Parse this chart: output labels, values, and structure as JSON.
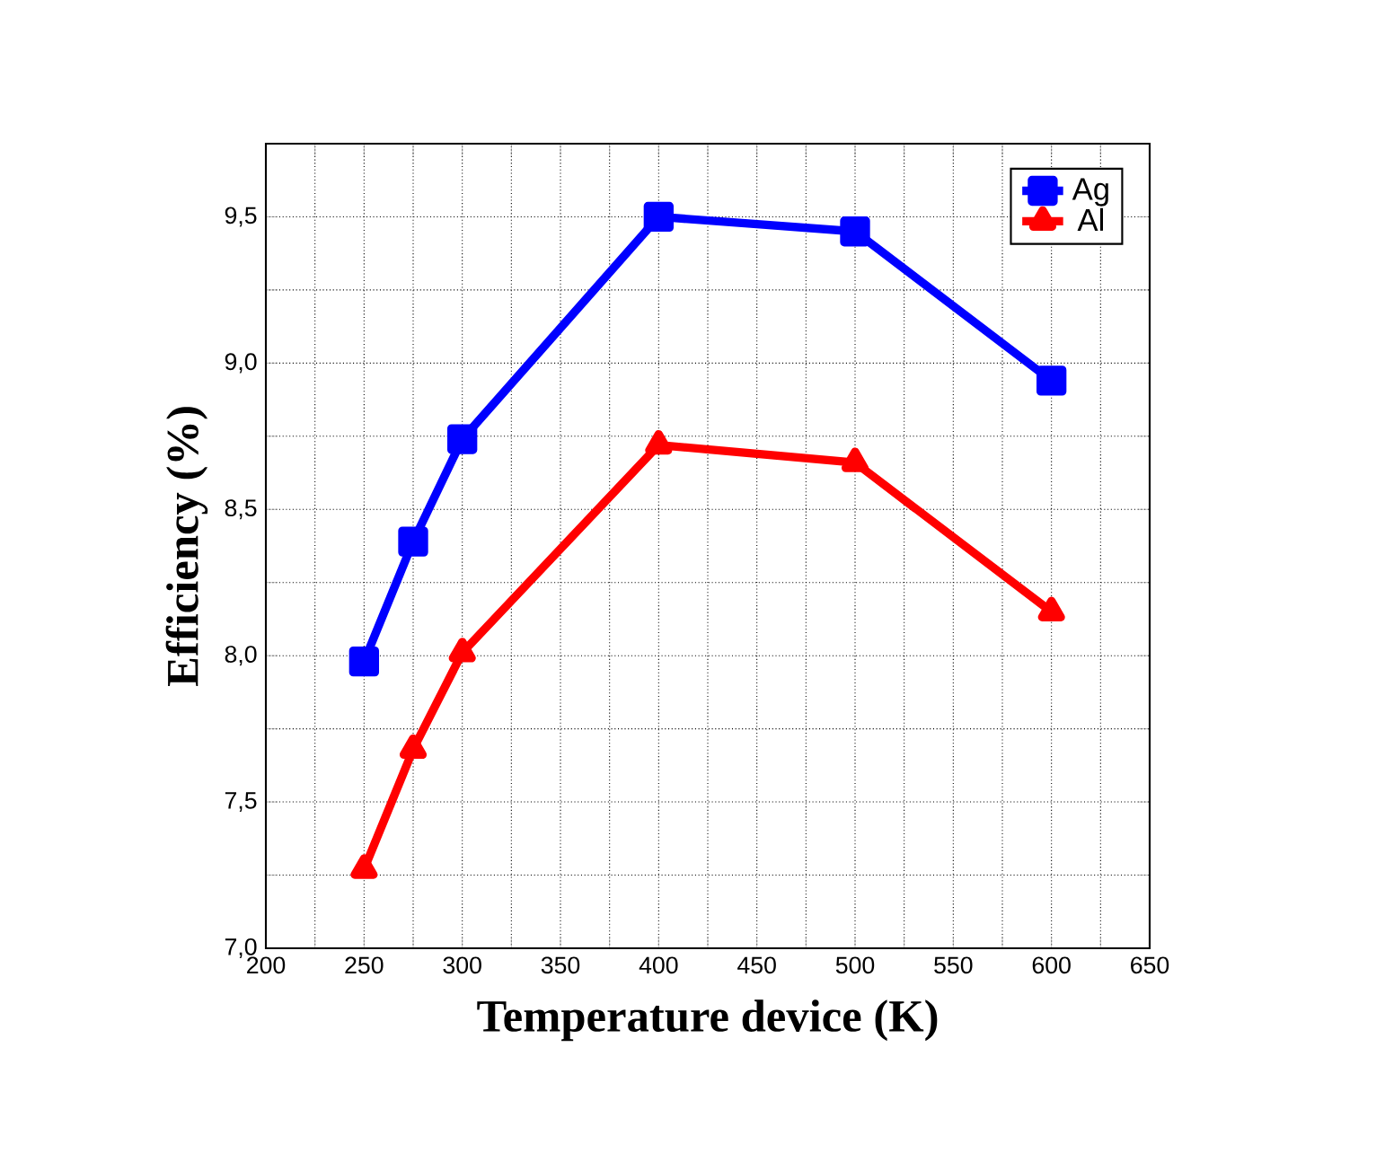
{
  "chart_data": {
    "type": "line",
    "xlabel": "Temperature device (K)",
    "ylabel": "Efficiency (%)",
    "x": [
      250,
      275,
      300,
      400,
      500,
      600
    ],
    "series": [
      {
        "name": "Ag",
        "color": "#0000ff",
        "marker": "square",
        "values": [
          7.98,
          8.39,
          8.74,
          9.5,
          9.45,
          8.94
        ]
      },
      {
        "name": "Al",
        "color": "#ff0000",
        "marker": "triangle",
        "values": [
          7.27,
          7.68,
          8.01,
          8.72,
          8.66,
          8.15
        ]
      }
    ],
    "xlim": [
      200,
      650
    ],
    "ylim": [
      7.0,
      9.75
    ],
    "xticks": [
      200,
      {
        "value": 225,
        "label": null
      },
      250,
      {
        "value": 275,
        "label": null
      },
      300,
      {
        "value": 325,
        "label": null
      },
      350,
      {
        "value": 375,
        "label": null
      },
      400,
      {
        "value": 425,
        "label": null
      },
      450,
      {
        "value": 475,
        "label": null
      },
      500,
      {
        "value": 525,
        "label": null
      },
      550,
      {
        "value": 575,
        "label": null
      },
      600,
      {
        "value": 625,
        "label": null
      },
      650
    ],
    "yticks": [
      {
        "value": 7.0,
        "label": "7,0"
      },
      {
        "value": 7.25,
        "label": null
      },
      {
        "value": 7.5,
        "label": "7,5"
      },
      {
        "value": 7.75,
        "label": null
      },
      {
        "value": 8.0,
        "label": "8,0"
      },
      {
        "value": 8.25,
        "label": null
      },
      {
        "value": 8.5,
        "label": "8,5"
      },
      {
        "value": 8.75,
        "label": null
      },
      {
        "value": 9.0,
        "label": "9,0"
      },
      {
        "value": 9.25,
        "label": null
      },
      {
        "value": 9.5,
        "label": "9,5"
      },
      {
        "value": 9.75,
        "label": null
      }
    ],
    "grid": true,
    "legend": "top right",
    "line_style": "solid"
  }
}
